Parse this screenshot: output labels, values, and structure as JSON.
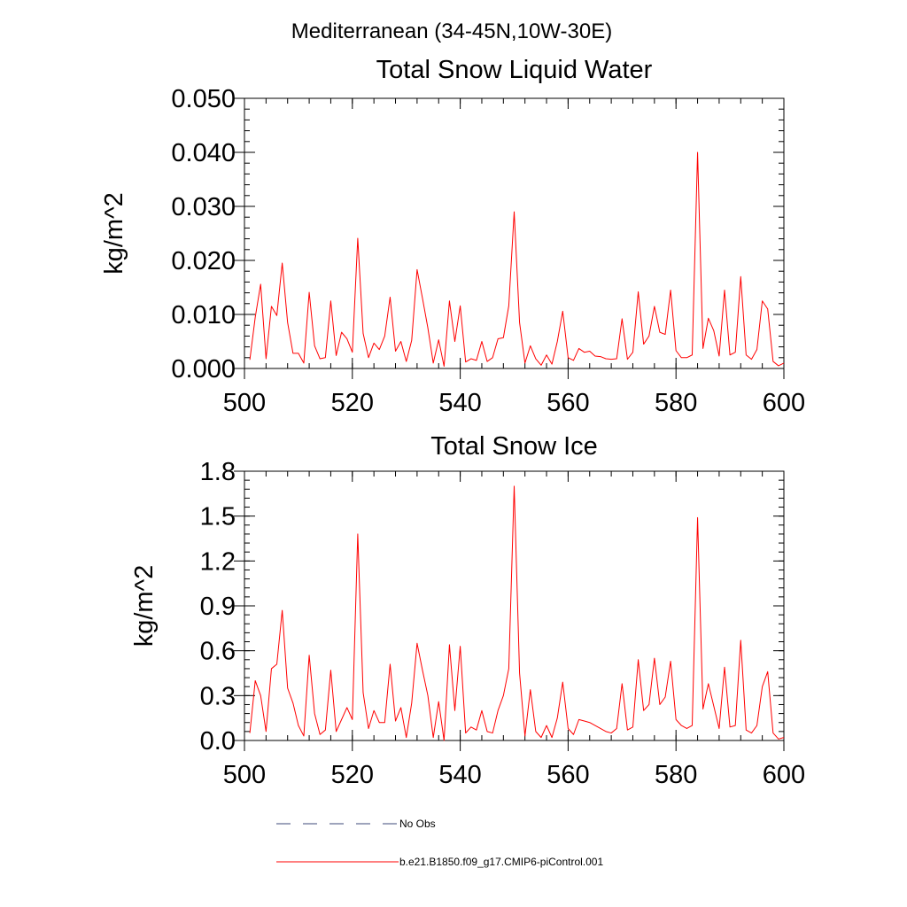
{
  "figure": {
    "title": "Mediterranean (34-45N,10W-30E)"
  },
  "chart_data": [
    {
      "type": "line",
      "title": "Total Snow Liquid Water",
      "xlabel": "",
      "ylabel": "kg/m^2",
      "xlim": [
        500,
        600
      ],
      "ylim": [
        0,
        0.05
      ],
      "xticks": [
        500,
        520,
        540,
        560,
        580,
        600
      ],
      "xtick_labels": [
        "500",
        "520",
        "540",
        "560",
        "580",
        "600"
      ],
      "yticks": [
        0,
        0.01,
        0.02,
        0.03,
        0.04,
        0.05
      ],
      "ytick_labels": [
        "0.000",
        "0.010",
        "0.020",
        "0.030",
        "0.040",
        "0.050"
      ],
      "y_minor_step": 0.002,
      "x_minor_step": 4,
      "series": [
        {
          "name": "b.e21.B1850.f09_g17.CMIP6-piControl.001",
          "color": "#ff0000",
          "x_start": 501,
          "x_step": 1,
          "values": [
            0.0016,
            0.0095,
            0.0156,
            0.0018,
            0.0115,
            0.0098,
            0.0195,
            0.0085,
            0.0028,
            0.0028,
            0.001,
            0.0141,
            0.0042,
            0.0018,
            0.002,
            0.0125,
            0.0024,
            0.0067,
            0.0055,
            0.003,
            0.0241,
            0.0065,
            0.002,
            0.0047,
            0.0035,
            0.006,
            0.0132,
            0.0032,
            0.005,
            0.0013,
            0.0052,
            0.0183,
            0.013,
            0.0075,
            0.001,
            0.0053,
            0.0004,
            0.0125,
            0.005,
            0.0116,
            0.0012,
            0.0018,
            0.0015,
            0.005,
            0.0013,
            0.002,
            0.0055,
            0.0057,
            0.0116,
            0.029,
            0.0085,
            0.001,
            0.0042,
            0.0018,
            0.0006,
            0.0025,
            0.0008,
            0.005,
            0.0106,
            0.002,
            0.0015,
            0.0037,
            0.003,
            0.0032,
            0.0023,
            0.0022,
            0.0018,
            0.0017,
            0.0018,
            0.0092,
            0.0017,
            0.003,
            0.0142,
            0.0045,
            0.006,
            0.0115,
            0.0067,
            0.0063,
            0.0145,
            0.0033,
            0.002,
            0.002,
            0.0025,
            0.04,
            0.0037,
            0.0093,
            0.007,
            0.0023,
            0.0145,
            0.0025,
            0.003,
            0.017,
            0.0025,
            0.0017,
            0.0035,
            0.0125,
            0.011,
            0.0013,
            0.0005,
            0.001
          ]
        }
      ]
    },
    {
      "type": "line",
      "title": "Total Snow Ice",
      "xlabel": "",
      "ylabel": "kg/m^2",
      "xlim": [
        500,
        600
      ],
      "ylim": [
        0,
        1.8
      ],
      "xticks": [
        500,
        520,
        540,
        560,
        580,
        600
      ],
      "xtick_labels": [
        "500",
        "520",
        "540",
        "560",
        "580",
        "600"
      ],
      "yticks": [
        0,
        0.3,
        0.6,
        0.9,
        1.2,
        1.5,
        1.8
      ],
      "ytick_labels": [
        "0.0",
        "0.3",
        "0.6",
        "0.9",
        "1.2",
        "1.5",
        "1.8"
      ],
      "y_minor_step": 0.06,
      "x_minor_step": 4,
      "series": [
        {
          "name": "b.e21.B1850.f09_g17.CMIP6-piControl.001",
          "color": "#ff0000",
          "x_start": 501,
          "x_step": 1,
          "values": [
            0.05,
            0.4,
            0.3,
            0.06,
            0.48,
            0.51,
            0.87,
            0.35,
            0.25,
            0.1,
            0.03,
            0.57,
            0.18,
            0.04,
            0.07,
            0.47,
            0.06,
            0.14,
            0.22,
            0.14,
            1.38,
            0.32,
            0.08,
            0.2,
            0.12,
            0.12,
            0.51,
            0.13,
            0.22,
            0.02,
            0.25,
            0.65,
            0.47,
            0.3,
            0.02,
            0.26,
            0.0,
            0.64,
            0.2,
            0.63,
            0.05,
            0.09,
            0.07,
            0.2,
            0.06,
            0.05,
            0.2,
            0.3,
            0.48,
            1.7,
            0.45,
            0.03,
            0.34,
            0.06,
            0.02,
            0.1,
            0.02,
            0.15,
            0.39,
            0.08,
            0.04,
            0.14,
            0.13,
            0.12,
            0.1,
            0.08,
            0.06,
            0.05,
            0.08,
            0.38,
            0.07,
            0.09,
            0.54,
            0.2,
            0.24,
            0.55,
            0.24,
            0.29,
            0.53,
            0.14,
            0.1,
            0.08,
            0.1,
            1.49,
            0.21,
            0.38,
            0.23,
            0.08,
            0.49,
            0.09,
            0.1,
            0.67,
            0.07,
            0.05,
            0.1,
            0.36,
            0.46,
            0.05,
            0.01,
            0.02
          ]
        }
      ]
    }
  ],
  "legend": [
    {
      "label": "No Obs",
      "style": "dashed",
      "color": "#3d4a7a"
    },
    {
      "label": "b.e21.B1850.f09_g17.CMIP6-piControl.001",
      "style": "solid",
      "color": "#ff0000"
    }
  ]
}
